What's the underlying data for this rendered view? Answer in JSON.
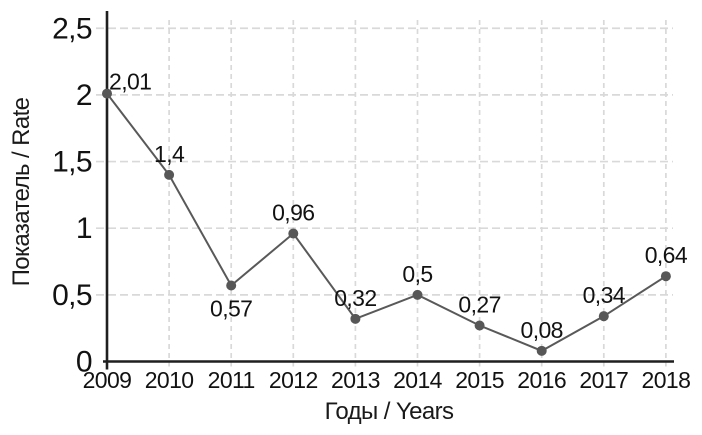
{
  "chart_data": {
    "type": "line",
    "xlabel": "Годы / Years",
    "ylabel": "Показатель / Rate",
    "categories": [
      "2009",
      "2010",
      "2011",
      "2012",
      "2013",
      "2014",
      "2015",
      "2016",
      "2017",
      "2018"
    ],
    "values": [
      2.01,
      1.4,
      0.57,
      0.96,
      0.32,
      0.5,
      0.27,
      0.08,
      0.34,
      0.64
    ],
    "point_labels": [
      "2,01",
      "1,4",
      "0,57",
      "0,96",
      "0,32",
      "0,5",
      "0,27",
      "0,08",
      "0,34",
      "0,64"
    ],
    "label_side": [
      "above-right",
      "above",
      "below",
      "above",
      "above",
      "above",
      "above",
      "above",
      "above",
      "above"
    ],
    "y_ticks": [
      {
        "value": 0,
        "label": "0"
      },
      {
        "value": 0.5,
        "label": "0,5"
      },
      {
        "value": 1,
        "label": "1"
      },
      {
        "value": 1.5,
        "label": "1,5"
      },
      {
        "value": 2,
        "label": "2"
      },
      {
        "value": 2.5,
        "label": "2,5"
      }
    ],
    "ylim": [
      0,
      2.5
    ],
    "grid": "dashed",
    "legend": "none",
    "colors": {
      "line": "#595959",
      "marker": "#575757",
      "grid": "#d9d9d9",
      "axis": "#1f1f1f",
      "text": "#121212",
      "background": "#ffffff"
    }
  }
}
